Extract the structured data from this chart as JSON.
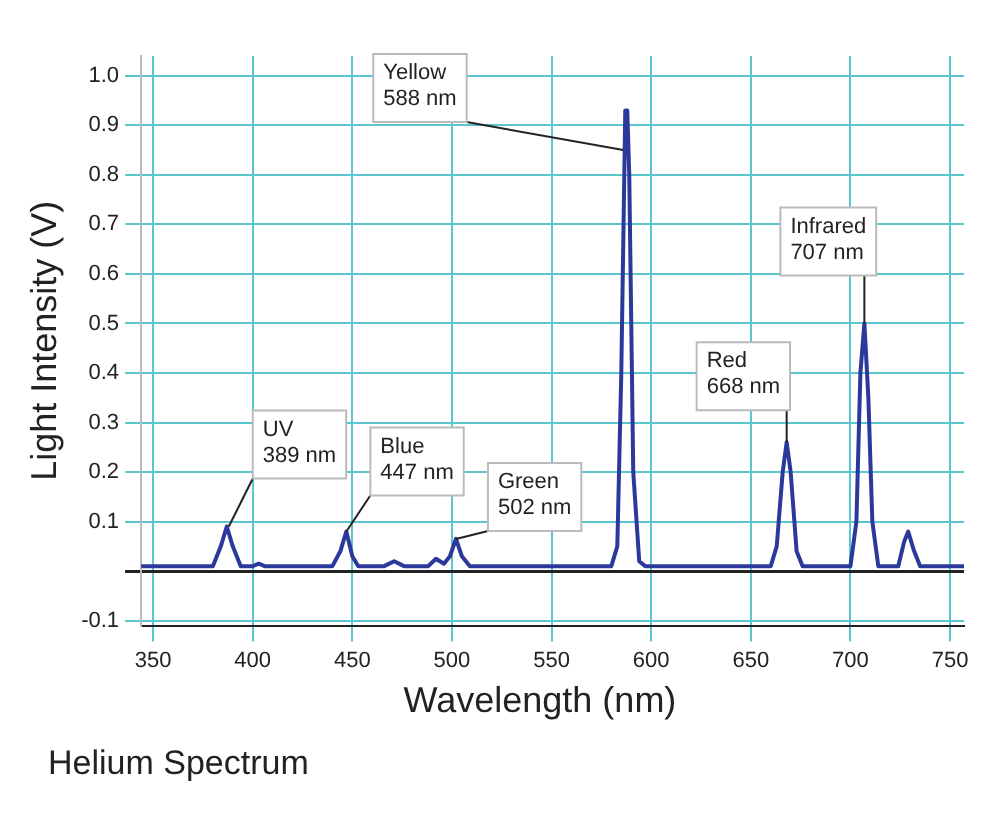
{
  "chart_data": {
    "type": "line",
    "title": "Helium Spectrum",
    "xlabel": "Wavelength (nm)",
    "ylabel": "Light Intensity (V)",
    "xlim": [
      344,
      757
    ],
    "xticks": [
      350,
      400,
      450,
      500,
      550,
      600,
      650,
      700,
      750
    ],
    "ylim": [
      -0.11,
      1.04
    ],
    "yticks": [
      -0.1,
      {
        "value": 0,
        "label": null
      },
      0.1,
      0.2,
      0.3,
      0.4,
      0.5,
      0.6,
      0.7,
      0.8,
      0.9,
      {
        "value": 1,
        "label": "1.0"
      }
    ],
    "grid": true,
    "legend": false,
    "marker": "none",
    "line_style": "solid",
    "series": [
      {
        "color": "#2b3a9a",
        "x": [
          344,
          380,
          384,
          387,
          390,
          394,
          400,
          403,
          406,
          440,
          444,
          447,
          450,
          453,
          466,
          471,
          476,
          488,
          492,
          496,
          499,
          502,
          505,
          509,
          580,
          583,
          585,
          587,
          588,
          589,
          591,
          594,
          597,
          660,
          663,
          666,
          668,
          670,
          673,
          676,
          700,
          703,
          705,
          707,
          709,
          711,
          714,
          724,
          727,
          729,
          732,
          735,
          757
        ],
        "values": [
          0.01,
          0.01,
          0.05,
          0.09,
          0.05,
          0.01,
          0.01,
          0.015,
          0.01,
          0.01,
          0.04,
          0.08,
          0.03,
          0.01,
          0.01,
          0.02,
          0.01,
          0.01,
          0.025,
          0.015,
          0.03,
          0.065,
          0.03,
          0.01,
          0.01,
          0.05,
          0.4,
          0.93,
          0.93,
          0.8,
          0.2,
          0.02,
          0.01,
          0.01,
          0.05,
          0.2,
          0.26,
          0.2,
          0.04,
          0.01,
          0.01,
          0.1,
          0.4,
          0.5,
          0.35,
          0.1,
          0.01,
          0.01,
          0.06,
          0.08,
          0.04,
          0.01,
          0.01
        ]
      }
    ],
    "annotations": [
      {
        "text": "UV\n389 nm",
        "x": 388,
        "y": 0.09
      },
      {
        "text": "Blue\n447 nm",
        "x": 447,
        "y": 0.08
      },
      {
        "text": "Green\n502 nm",
        "x": 502,
        "y": 0.065
      },
      {
        "text": "Yellow\n588 nm",
        "x": 586,
        "y": 0.85
      },
      {
        "text": "Red\n668 nm",
        "x": 668,
        "y": 0.26
      },
      {
        "text": "Infrared\n707 nm",
        "x": 707,
        "y": 0.5
      }
    ]
  }
}
